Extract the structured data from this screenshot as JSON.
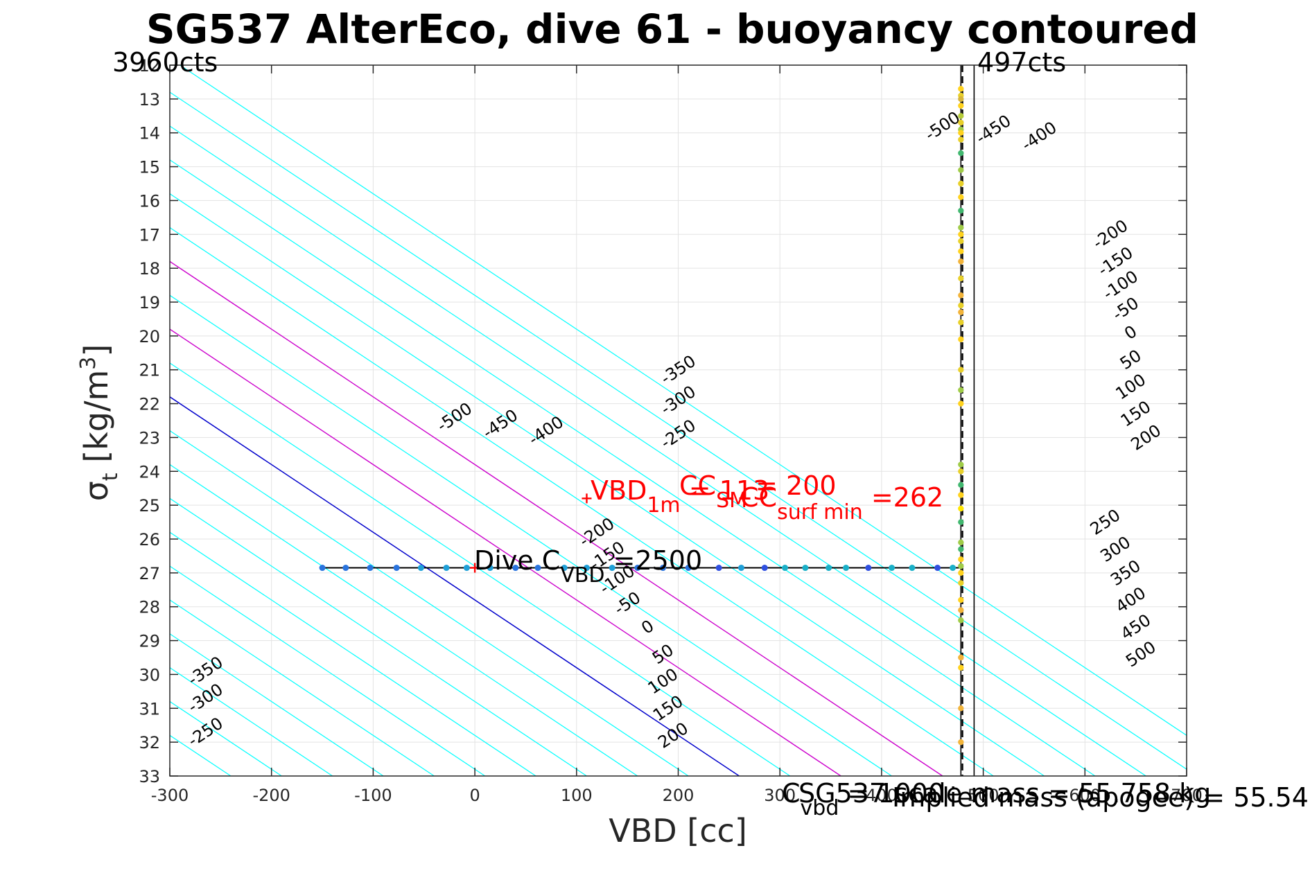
{
  "chart_data": {
    "type": "line",
    "title": "SG537 AlterEco, dive 61 - buoyancy contoured",
    "xlabel": "VBD [cc]",
    "ylabel": {
      "main": "σ",
      "sub": "t",
      "unit_pre": " [kg/m",
      "unit_sup": "3",
      "unit_post": "]"
    },
    "xlim": [
      -300,
      700
    ],
    "ylim": [
      12,
      33
    ],
    "y_reversed": true,
    "grid": true,
    "xticks": [
      -300,
      -200,
      -100,
      0,
      100,
      200,
      300,
      400,
      500,
      600,
      700
    ],
    "xtick_labels": [
      "-300",
      "-200",
      "-100",
      "0",
      "100",
      "200",
      "300",
      "400",
      "500",
      "600",
      "700"
    ],
    "yticks": [
      12,
      13,
      14,
      15,
      16,
      17,
      18,
      19,
      20,
      21,
      22,
      23,
      24,
      25,
      26,
      27,
      28,
      29,
      30,
      31,
      32,
      33
    ],
    "ytick_labels": [
      "12",
      "13",
      "14",
      "15",
      "16",
      "17",
      "18",
      "19",
      "20",
      "21",
      "22",
      "23",
      "24",
      "25",
      "26",
      "27",
      "28",
      "29",
      "30",
      "31",
      "32",
      "33"
    ],
    "corner_left": "3960cts",
    "corner_right": "497cts",
    "buoyancy_contours": {
      "levels": [
        -500,
        -450,
        -400,
        -350,
        -300,
        -250,
        -200,
        -150,
        -100,
        -50,
        0,
        50,
        100,
        150,
        200,
        250,
        300,
        350,
        400,
        450,
        500
      ],
      "vbd_at_27": [
        -540,
        -490,
        -440,
        -390,
        -340,
        -290,
        -240,
        -190,
        -140,
        -90,
        -40,
        10,
        60,
        110,
        160,
        210,
        260,
        310,
        360,
        410,
        460
      ],
      "cc_per_sigma_unit": 50,
      "color_default": "#00ffff",
      "color_zero": "#0000cc",
      "color_highlight": "#cc00cc",
      "highlight_levels": [
        100,
        200
      ],
      "label_points": [
        {
          "level": -500,
          "x": -20,
          "y": 22.4
        },
        {
          "level": -450,
          "x": 25,
          "y": 22.6
        },
        {
          "level": -400,
          "x": 70,
          "y": 22.8
        },
        {
          "level": -350,
          "x": 200,
          "y": 21.0
        },
        {
          "level": -300,
          "x": 200,
          "y": 21.9
        },
        {
          "level": -250,
          "x": 200,
          "y": 22.9
        },
        {
          "level": -500,
          "x": 460,
          "y": 13.8
        },
        {
          "level": -450,
          "x": 510,
          "y": 13.9
        },
        {
          "level": -400,
          "x": 555,
          "y": 14.1
        },
        {
          "level": -350,
          "x": -265,
          "y": 29.9
        },
        {
          "level": -300,
          "x": -265,
          "y": 30.7
        },
        {
          "level": -250,
          "x": -265,
          "y": 31.7
        },
        {
          "level": -200,
          "x": 120,
          "y": 25.8
        },
        {
          "level": -150,
          "x": 130,
          "y": 26.5
        },
        {
          "level": -100,
          "x": 140,
          "y": 27.2
        },
        {
          "level": -50,
          "x": 150,
          "y": 27.9
        },
        {
          "level": 0,
          "x": 170,
          "y": 28.6
        },
        {
          "level": 50,
          "x": 185,
          "y": 29.4
        },
        {
          "level": 100,
          "x": 185,
          "y": 30.2
        },
        {
          "level": 150,
          "x": 190,
          "y": 31.0
        },
        {
          "level": 200,
          "x": 195,
          "y": 31.8
        },
        {
          "level": -200,
          "x": 625,
          "y": 17.0
        },
        {
          "level": -150,
          "x": 630,
          "y": 17.8
        },
        {
          "level": -100,
          "x": 635,
          "y": 18.5
        },
        {
          "level": -50,
          "x": 640,
          "y": 19.2
        },
        {
          "level": 0,
          "x": 645,
          "y": 19.9
        },
        {
          "level": 50,
          "x": 645,
          "y": 20.7
        },
        {
          "level": 100,
          "x": 645,
          "y": 21.5
        },
        {
          "level": 150,
          "x": 650,
          "y": 22.3
        },
        {
          "level": 200,
          "x": 660,
          "y": 23.0
        },
        {
          "level": 250,
          "x": 620,
          "y": 25.5
        },
        {
          "level": 300,
          "x": 630,
          "y": 26.3
        },
        {
          "level": 350,
          "x": 640,
          "y": 27.0
        },
        {
          "level": 400,
          "x": 645,
          "y": 27.8
        },
        {
          "level": 450,
          "x": 650,
          "y": 28.6
        },
        {
          "level": 500,
          "x": 655,
          "y": 29.4
        }
      ]
    },
    "vertical_lines": [
      {
        "x": 478,
        "style": "solid"
      },
      {
        "x": 479.5,
        "style": "dashed"
      },
      {
        "x": 491,
        "style": "solid"
      }
    ],
    "dive_line": {
      "x_start": -150,
      "x_end": 478,
      "y": 26.85
    },
    "dive_points": {
      "x": [
        -150,
        -127,
        -103,
        -77,
        -53,
        -28,
        -8,
        15,
        40,
        62,
        88,
        110,
        135,
        160,
        185,
        210,
        240,
        262,
        285,
        305,
        325,
        348,
        365,
        387,
        410,
        430,
        455,
        470
      ],
      "y": 26.85,
      "colors": [
        "#2a74de",
        "#2a74de",
        "#2a74de",
        "#2a74de",
        "#1fa0d8",
        "#1fa0d8",
        "#1fa0d8",
        "#1fa0d8",
        "#2a74de",
        "#2a74de",
        "#1fa0d8",
        "#1fa0d8",
        "#1fa0d8",
        "#2a74de",
        "#2a74de",
        "#2a74de",
        "#3050e0",
        "#1fa0d8",
        "#3050e0",
        "#1ab0c8",
        "#1ab0c8",
        "#1ab0c8",
        "#1ab0c8",
        "#3050e0",
        "#1ab0c8",
        "#1ab0c8",
        "#3050e0",
        "#1ab0c8"
      ]
    },
    "profile_points": {
      "x": 478,
      "y": [
        12.7,
        12.9,
        13.0,
        13.2,
        13.5,
        13.7,
        13.9,
        14.0,
        14.2,
        14.6,
        15.1,
        15.5,
        15.9,
        16.3,
        16.8,
        17.0,
        17.2,
        17.5,
        17.8,
        18.3,
        18.8,
        19.1,
        19.3,
        19.6,
        20.1,
        21.0,
        21.6,
        22.0,
        23.8,
        24.0,
        24.4,
        24.7,
        25.1,
        25.5,
        26.1,
        26.3,
        26.6,
        26.8,
        27.0,
        27.3,
        27.8,
        28.1,
        28.4,
        29.5,
        29.8,
        31.0,
        32.0
      ],
      "colors": [
        "#ffd21e",
        "#e8d02a",
        "#d6b43a",
        "#ffd21e",
        "#b6cc3a",
        "#e8d02a",
        "#a0cc48",
        "#ffd21e",
        "#e8d02a",
        "#42b870",
        "#a0cc48",
        "#e8d02a",
        "#ffd21e",
        "#42b870",
        "#a0cc48",
        "#ffd21e",
        "#e8d02a",
        "#ffd21e",
        "#f2b43a",
        "#e8d02a",
        "#f2b43a",
        "#e8d02a",
        "#f2b43a",
        "#e8d02a",
        "#ffd21e",
        "#e8d02a",
        "#a0cc48",
        "#ffd21e",
        "#a0cc48",
        "#e8d02a",
        "#42b870",
        "#ffd21e",
        "#ffe600",
        "#42b870",
        "#a0cc48",
        "#42b870",
        "#ffd21e",
        "#a0cc48",
        "#ffd21e",
        "#e8d02a",
        "#ffd21e",
        "#f2b43a",
        "#a0cc48",
        "#f2b43a",
        "#ffd21e",
        "#f2b43a",
        "#f2b43a"
      ]
    },
    "red_markers": [
      {
        "x": 0,
        "y": 26.85
      },
      {
        "x": 110,
        "y": 24.8
      }
    ],
    "annotations": {
      "vbd_1m_main": "VBD",
      "vbd_1m_sub": "1m",
      "vbd_1m_rest": " = 113",
      "cc_sm_main": "CC",
      "cc_sm_sub": "SM",
      "cc_sm_rest": " = 200",
      "cc_surf_main": "CC",
      "cc_surf_sub": "surf min",
      "cc_surf_rest": " =262",
      "dive_c_main": "Dive C",
      "dive_c_sub": "VBD",
      "dive_c_rest": " =2500",
      "cvbd_main": "C",
      "cvbd_sub": "vbd",
      "cvbd_rest": " = 1000",
      "sg_scale_mass": "SG537 scale mass = 55.758 kg",
      "implied_mass": "Implied mass (apogee) = 55.54"
    }
  }
}
